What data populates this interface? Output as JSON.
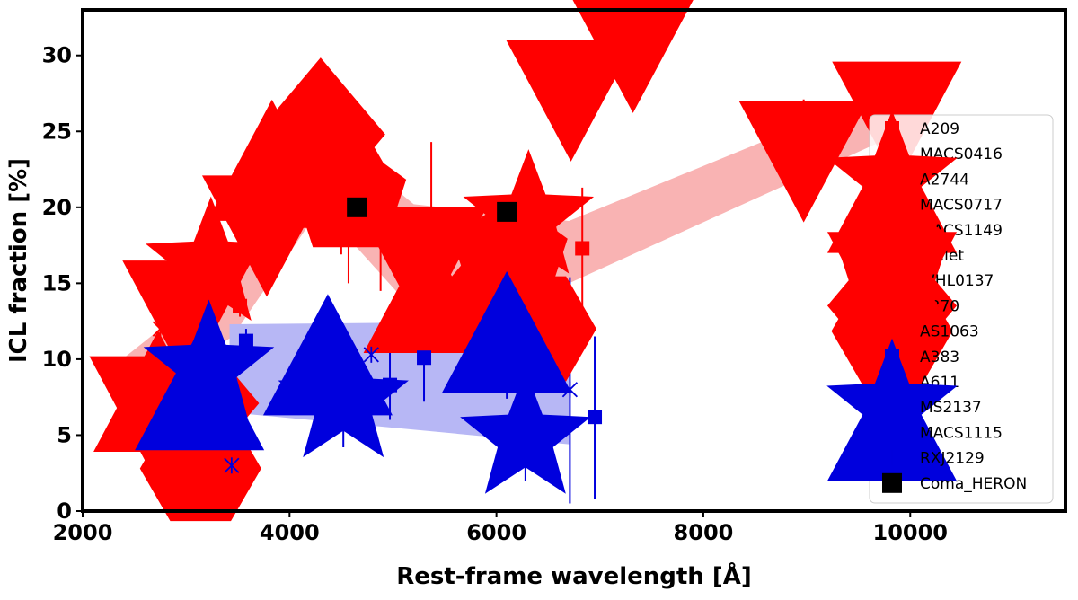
{
  "chart_data": {
    "type": "scatter",
    "title": "",
    "xlabel": "Rest-frame wavelength [Å]",
    "ylabel": "ICL fraction [%]",
    "xlim": [
      2000,
      11500
    ],
    "ylim": [
      0,
      33
    ],
    "xticks": [
      2000,
      4000,
      6000,
      8000,
      10000
    ],
    "yticks": [
      0,
      5,
      10,
      15,
      20,
      25,
      30
    ],
    "grid": false,
    "legend_position": "right",
    "colors": {
      "red": "#ff0000",
      "blue": "#0000dd",
      "black": "#000000",
      "red_band": "#f9b3b3",
      "blue_band": "#b7b7f5"
    },
    "bands": [
      {
        "color": "red",
        "x": [
          2420,
          3450,
          4300,
          5200,
          6700,
          10000
        ],
        "lower": [
          7.0,
          11.5,
          20.0,
          13.2,
          15.0,
          25.2
        ],
        "upper": [
          10.2,
          15.8,
          25.3,
          20.2,
          19.1,
          28.3
        ]
      },
      {
        "color": "blue",
        "x": [
          3420,
          6700
        ],
        "lower": [
          6.5,
          4.4
        ],
        "upper": [
          12.3,
          12.5
        ]
      }
    ],
    "series": [
      {
        "name": "A209",
        "color": "red",
        "marker": "square",
        "points": [
          {
            "x": 3520,
            "y": 13.5,
            "err": [
              12.8,
              14.2
            ]
          },
          {
            "x": 4880,
            "y": 18.0,
            "err": [
              14.5,
              21.6
            ]
          },
          {
            "x": 6830,
            "y": 17.3,
            "err": [
              13.1,
              21.3
            ]
          }
        ]
      },
      {
        "name": "MACS0416",
        "color": "red",
        "marker": "circle",
        "points": [
          {
            "x": 3040,
            "y": 15.2,
            "err": [
              13.7,
              15.2
            ]
          },
          {
            "x": 4230,
            "y": 22.8,
            "err": [
              22.8,
              22.8
            ]
          },
          {
            "x": 4500,
            "y": 20.0,
            "err": [
              16.9,
              23.1
            ]
          },
          {
            "x": 5900,
            "y": 11.3,
            "err": [
              9.5,
              12.5
            ]
          }
        ]
      },
      {
        "name": "A2744",
        "color": "red",
        "marker": "star",
        "points": [
          {
            "x": 3240,
            "y": 16.2,
            "err": [
              15.5,
              17.0
            ]
          },
          {
            "x": 6310,
            "y": 19.3,
            "err": [
              18.2,
              20.5
            ]
          }
        ]
      },
      {
        "name": "MACS0717",
        "color": "red",
        "marker": "triangle-up",
        "points": [
          {
            "x": 2730,
            "y": 7.1,
            "err": [
              6.2,
              7.7
            ]
          },
          {
            "x": 3830,
            "y": 22.3,
            "err": [
              18.6,
              26.0
            ]
          },
          {
            "x": 5340,
            "y": 13.6,
            "err": [
              11.0,
              15.5
            ]
          }
        ]
      },
      {
        "name": "MACS1149",
        "color": "red",
        "marker": "x-star",
        "points": [
          {
            "x": 2750,
            "y": 12.0,
            "err": [
              10.7,
              13.2
            ]
          },
          {
            "x": 3830,
            "y": 20.6,
            "err": [
              19.2,
              22.0
            ]
          },
          {
            "x": 5370,
            "y": 18.4,
            "err": [
              12.5,
              24.3
            ]
          }
        ]
      },
      {
        "name": "Bullet",
        "color": "red",
        "marker": "pentagon",
        "points": [
          {
            "x": 4570,
            "y": 20.6,
            "err": [
              15.0,
              23.0
            ]
          },
          {
            "x": 6130,
            "y": 16.7,
            "err": [
              16.7,
              16.7
            ]
          }
        ]
      },
      {
        "name": "WHL0137",
        "color": "red",
        "marker": "triangle-down",
        "points": [
          {
            "x": 2690,
            "y": 7.0,
            "err": [
              4.2,
              9.2
            ]
          },
          {
            "x": 3010,
            "y": 13.3,
            "err": [
              11.3,
              15.3
            ]
          },
          {
            "x": 3780,
            "y": 18.9,
            "err": [
              17.5,
              20.3
            ]
          },
          {
            "x": 5280,
            "y": 16.8,
            "err": [
              15.5,
              17.3
            ]
          },
          {
            "x": 6720,
            "y": 27.8,
            "err": [
              24.8,
              30.8
            ]
          },
          {
            "x": 7320,
            "y": 31.0,
            "err": [
              28.9,
              33.0
            ]
          },
          {
            "x": 8970,
            "y": 23.8,
            "err": [
              20.5,
              27.1
            ]
          },
          {
            "x": 9870,
            "y": 26.4,
            "err": [
              23.7,
              29.1
            ]
          }
        ]
      },
      {
        "name": "A370",
        "color": "red",
        "marker": "diamond",
        "points": [
          {
            "x": 3080,
            "y": 7.1,
            "err": [
              5.2,
              8.8
            ]
          },
          {
            "x": 4300,
            "y": 24.8,
            "err": [
              24.8,
              24.8
            ]
          },
          {
            "x": 5990,
            "y": 13.8,
            "err": [
              13.8,
              13.8
            ]
          }
        ]
      },
      {
        "name": "AS1063",
        "color": "red",
        "marker": "hexagon",
        "points": [
          {
            "x": 3140,
            "y": 2.8,
            "err": [
              2.3,
              3.3
            ]
          },
          {
            "x": 4390,
            "y": 22.1,
            "err": [
              21.5,
              22.7
            ]
          },
          {
            "x": 6380,
            "y": 12.0,
            "err": [
              10.8,
              13.1
            ]
          }
        ]
      },
      {
        "name": "A383",
        "color": "blue",
        "marker": "square",
        "points": [
          {
            "x": 3580,
            "y": 11.2,
            "err": [
              10.5,
              12.0
            ]
          },
          {
            "x": 4970,
            "y": 8.3,
            "err": [
              6.0,
              10.5
            ]
          },
          {
            "x": 5300,
            "y": 10.1,
            "err": [
              7.2,
              13.0
            ]
          },
          {
            "x": 6950,
            "y": 6.2,
            "err": [
              0.8,
              11.5
            ]
          }
        ]
      },
      {
        "name": "A611",
        "color": "blue",
        "marker": "circle",
        "points": [
          {
            "x": 3300,
            "y": 7.5,
            "err": [
              3.5,
              11.5
            ]
          },
          {
            "x": 4600,
            "y": 7.2,
            "err": [
              5.8,
              8.5
            ]
          },
          {
            "x": 6420,
            "y": 9.4,
            "err": [
              8.5,
              10.3
            ]
          }
        ]
      },
      {
        "name": "MS2137",
        "color": "blue",
        "marker": "star",
        "points": [
          {
            "x": 3220,
            "y": 9.4,
            "err": [
              8.5,
              10.3
            ]
          },
          {
            "x": 4520,
            "y": 7.2,
            "err": [
              4.2,
              10.3
            ]
          },
          {
            "x": 6280,
            "y": 4.8,
            "err": [
              2.0,
              7.6
            ]
          }
        ]
      },
      {
        "name": "MACS1115",
        "color": "blue",
        "marker": "triangle-up",
        "points": [
          {
            "x": 3130,
            "y": 7.2,
            "err": [
              1.5,
              13.0
            ]
          },
          {
            "x": 4370,
            "y": 9.5,
            "err": [
              7.5,
              11.5
            ]
          },
          {
            "x": 6100,
            "y": 11.0,
            "err": [
              7.4,
              14.5
            ]
          }
        ]
      },
      {
        "name": "RXJ2129",
        "color": "blue",
        "marker": "x-star",
        "points": [
          {
            "x": 3440,
            "y": 3.0,
            "err": [
              0.0,
              6.6
            ]
          },
          {
            "x": 4790,
            "y": 10.3,
            "err": [
              10.3,
              10.3
            ]
          },
          {
            "x": 6710,
            "y": 8.0,
            "err": [
              0.5,
              15.4
            ]
          }
        ]
      },
      {
        "name": "Coma_HERON",
        "color": "black",
        "marker": "big-square",
        "points": [
          {
            "x": 4650,
            "y": 20.0,
            "err": [
              20.0,
              20.0
            ]
          },
          {
            "x": 6100,
            "y": 19.7,
            "err": [
              19.7,
              19.7
            ]
          }
        ]
      }
    ]
  }
}
